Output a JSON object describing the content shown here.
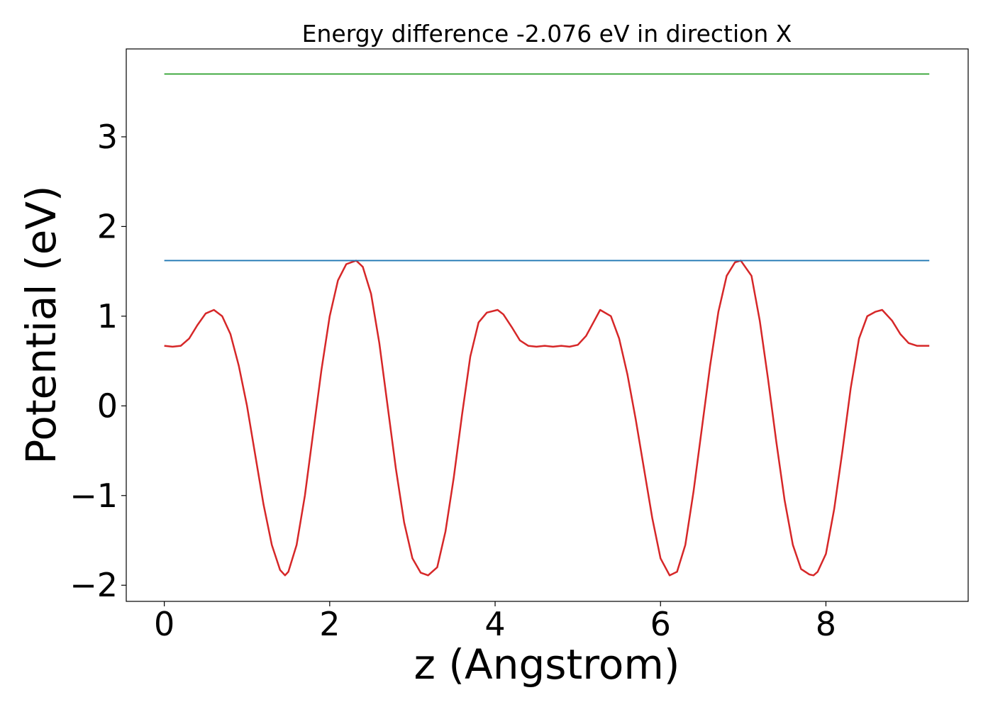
{
  "chart_data": {
    "type": "line",
    "title": "Energy difference -2.076 eV in direction X",
    "xlabel": "z (Angstrom)",
    "ylabel": "Potential (eV)",
    "xlim": [
      -0.46,
      9.72
    ],
    "ylim": [
      -2.18,
      3.98
    ],
    "xticks": [
      0,
      2,
      4,
      6,
      8
    ],
    "xtick_labels": [
      "0",
      "2",
      "4",
      "6",
      "8"
    ],
    "yticks": [
      -2,
      -1,
      0,
      1,
      2,
      3
    ],
    "ytick_labels": [
      "−2",
      "−1",
      "0",
      "1",
      "2",
      "3"
    ],
    "grid": false,
    "legend": "none",
    "series": [
      {
        "color": "#d62728",
        "x": [
          0.0,
          0.1,
          0.2,
          0.3,
          0.4,
          0.5,
          0.6,
          0.7,
          0.8,
          0.9,
          1.0,
          1.1,
          1.2,
          1.3,
          1.4,
          1.46,
          1.5,
          1.6,
          1.7,
          1.8,
          1.9,
          2.0,
          2.1,
          2.2,
          2.32,
          2.4,
          2.5,
          2.6,
          2.7,
          2.8,
          2.9,
          3.0,
          3.1,
          3.19,
          3.3,
          3.4,
          3.5,
          3.6,
          3.7,
          3.8,
          3.9,
          4.03,
          4.1,
          4.2,
          4.3,
          4.4,
          4.5,
          4.6,
          4.7,
          4.8,
          4.9,
          5.0,
          5.1,
          5.2,
          5.27,
          5.4,
          5.5,
          5.6,
          5.7,
          5.8,
          5.9,
          6.0,
          6.11,
          6.2,
          6.3,
          6.4,
          6.5,
          6.6,
          6.7,
          6.8,
          6.9,
          6.97,
          7.1,
          7.2,
          7.3,
          7.4,
          7.5,
          7.6,
          7.7,
          7.8,
          7.85,
          7.9,
          8.0,
          8.1,
          8.2,
          8.3,
          8.4,
          8.5,
          8.6,
          8.68,
          8.8,
          8.9,
          9.0,
          9.1,
          9.25
        ],
        "y": [
          0.67,
          0.66,
          0.67,
          0.75,
          0.9,
          1.03,
          1.07,
          1.0,
          0.8,
          0.45,
          0.0,
          -0.55,
          -1.1,
          -1.55,
          -1.83,
          -1.89,
          -1.85,
          -1.55,
          -1.0,
          -0.3,
          0.4,
          1.0,
          1.4,
          1.58,
          1.62,
          1.55,
          1.25,
          0.7,
          0.0,
          -0.7,
          -1.3,
          -1.7,
          -1.86,
          -1.89,
          -1.8,
          -1.4,
          -0.8,
          -0.1,
          0.55,
          0.93,
          1.04,
          1.07,
          1.02,
          0.88,
          0.73,
          0.67,
          0.66,
          0.67,
          0.66,
          0.67,
          0.66,
          0.68,
          0.78,
          0.95,
          1.07,
          1.0,
          0.75,
          0.35,
          -0.15,
          -0.7,
          -1.25,
          -1.7,
          -1.89,
          -1.85,
          -1.55,
          -0.95,
          -0.25,
          0.45,
          1.05,
          1.45,
          1.6,
          1.62,
          1.45,
          0.95,
          0.3,
          -0.4,
          -1.05,
          -1.55,
          -1.82,
          -1.88,
          -1.89,
          -1.85,
          -1.65,
          -1.15,
          -0.5,
          0.2,
          0.75,
          1.0,
          1.05,
          1.07,
          0.95,
          0.8,
          0.7,
          0.67,
          0.67
        ]
      },
      {
        "color": "#1f77b4",
        "x": [
          0.0,
          9.25
        ],
        "y": [
          1.62,
          1.62
        ]
      },
      {
        "color": "#2ca02c",
        "x": [
          0.0,
          9.25
        ],
        "y": [
          3.7,
          3.7
        ]
      }
    ]
  }
}
